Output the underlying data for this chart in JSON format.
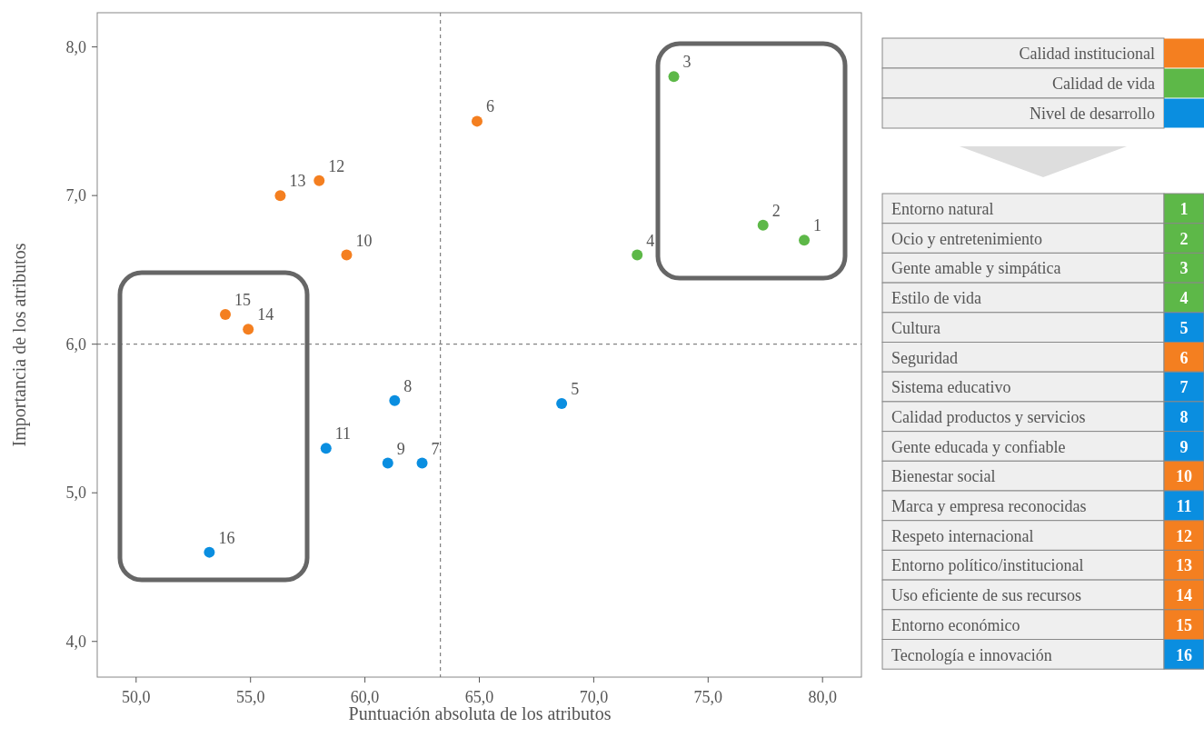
{
  "chart_data": {
    "type": "scatter",
    "xlabel": "Puntuación absoluta de los atributos",
    "ylabel": "Importancia de los atributos",
    "xlim": [
      48.3,
      81.7
    ],
    "ylim": [
      3.76,
      8.23
    ],
    "xticks": [
      {
        "value": 50,
        "label": "50,0"
      },
      {
        "value": 55,
        "label": "55,0"
      },
      {
        "value": 60,
        "label": "60,0"
      },
      {
        "value": 65,
        "label": "65,0"
      },
      {
        "value": 70,
        "label": "70,0"
      },
      {
        "value": 75,
        "label": "75,0"
      },
      {
        "value": 80,
        "label": "80,0"
      }
    ],
    "yticks": [
      {
        "value": 4,
        "label": "4,0"
      },
      {
        "value": 5,
        "label": "5,0"
      },
      {
        "value": 6,
        "label": "6,0"
      },
      {
        "value": 7,
        "label": "7,0"
      },
      {
        "value": 8,
        "label": "8,0"
      }
    ],
    "grid": false,
    "legend": "right",
    "marker": "circle",
    "ref_lines": [
      {
        "axis": "x",
        "value": 63.3,
        "line_style": "dashed"
      },
      {
        "axis": "y",
        "value": 6.0,
        "line_style": "dashed"
      }
    ],
    "series": [
      {
        "name": "Calidad institucional",
        "color": "#f47f20",
        "x": [
          64.9,
          59.2,
          58.0,
          56.3,
          54.9,
          53.9
        ],
        "values": [
          7.5,
          6.6,
          7.1,
          7.0,
          6.1,
          6.2
        ]
      },
      {
        "name": "Calidad de vida",
        "color": "#5db848",
        "x": [
          79.2,
          77.4,
          73.5,
          71.9
        ],
        "values": [
          6.7,
          6.8,
          7.8,
          6.6
        ]
      },
      {
        "name": "Nivel de desarrollo",
        "color": "#0a8ee0",
        "x": [
          68.6,
          62.5,
          61.3,
          61.0,
          58.3,
          53.2
        ],
        "values": [
          5.6,
          5.2,
          5.62,
          5.2,
          5.3,
          4.6
        ]
      }
    ],
    "annotations": [
      {
        "text": "1",
        "x": 79.2,
        "y": 6.7
      },
      {
        "text": "2",
        "x": 77.4,
        "y": 6.8
      },
      {
        "text": "3",
        "x": 73.5,
        "y": 7.8
      },
      {
        "text": "4",
        "x": 71.9,
        "y": 6.6
      },
      {
        "text": "5",
        "x": 68.6,
        "y": 5.6
      },
      {
        "text": "6",
        "x": 64.9,
        "y": 7.5
      },
      {
        "text": "7",
        "x": 62.5,
        "y": 5.2
      },
      {
        "text": "8",
        "x": 61.3,
        "y": 5.62
      },
      {
        "text": "9",
        "x": 61.0,
        "y": 5.2
      },
      {
        "text": "10",
        "x": 59.2,
        "y": 6.6
      },
      {
        "text": "11",
        "x": 58.3,
        "y": 5.3
      },
      {
        "text": "12",
        "x": 58.0,
        "y": 7.1
      },
      {
        "text": "13",
        "x": 56.3,
        "y": 7.0
      },
      {
        "text": "14",
        "x": 54.9,
        "y": 6.1
      },
      {
        "text": "15",
        "x": 53.9,
        "y": 6.2
      },
      {
        "text": "16",
        "x": 53.2,
        "y": 4.6
      },
      "Entorno natural",
      "Ocio y entretenimiento",
      "Gente amable y simpática",
      "Estilo de vida",
      "Cultura",
      "Seguridad",
      "Sistema educativo",
      "Calidad productos y servicios",
      "Gente educada y confiable",
      "Bienestar social",
      "Marca y empresa reconocidas",
      "Respeto internacional",
      "Entorno político/institucional",
      "Uso eficiente de sus recursos",
      "Entorno económico",
      "Tecnología e innovación"
    ]
  }
}
